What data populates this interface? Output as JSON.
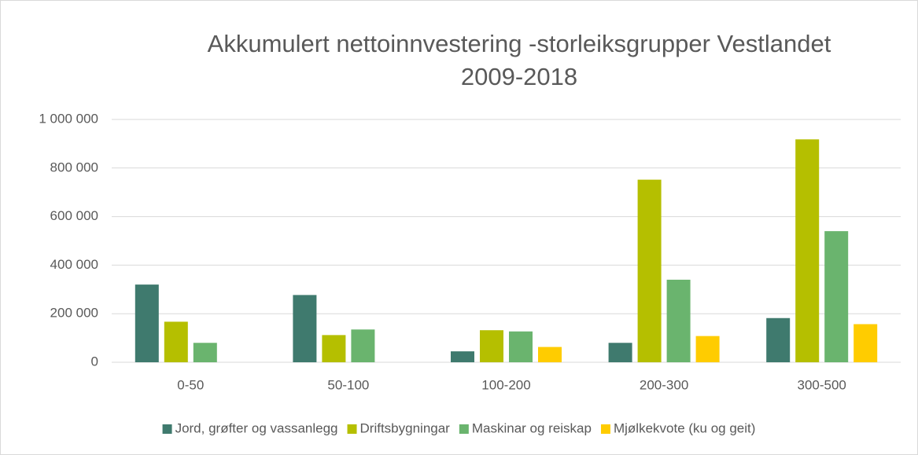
{
  "chart_data": {
    "type": "bar",
    "title": [
      "Akkumulert nettoinnvestering -storleiksgrupper Vestlandet",
      "2009-2018"
    ],
    "categories": [
      "0-50",
      "50-100",
      "100-200",
      "200-300",
      "300-500"
    ],
    "series": [
      {
        "name": "Jord, grøfter og vassanlegg",
        "color": "#3f7a6e",
        "values": [
          320000,
          277000,
          45000,
          80000,
          182000
        ]
      },
      {
        "name": "Driftsbygningar",
        "color": "#b5bf00",
        "values": [
          167000,
          112000,
          132000,
          752000,
          918000
        ]
      },
      {
        "name": "Maskinar og reiskap",
        "color": "#6ab46e",
        "values": [
          80000,
          135000,
          127000,
          340000,
          540000
        ]
      },
      {
        "name": "Mjølkekvote (ku og geit)",
        "color": "#ffcc00",
        "values": [
          0,
          0,
          63000,
          108000,
          157000
        ]
      }
    ],
    "ylim": [
      0,
      1000000
    ],
    "yticks": [
      0,
      {
        "value": 200000,
        "label": "200 000"
      },
      {
        "value": 400000,
        "label": "400 000"
      },
      {
        "value": 600000,
        "label": "600 000"
      },
      {
        "value": 800000,
        "label": "800 000"
      },
      {
        "value": 1000000,
        "label": "1 000 000"
      }
    ],
    "grid": true,
    "legend": "bottom"
  }
}
